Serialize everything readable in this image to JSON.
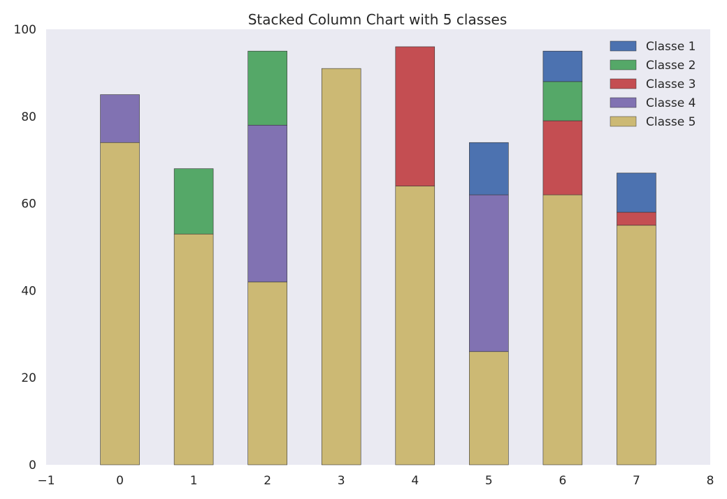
{
  "chart_data": {
    "type": "bar",
    "stacked": true,
    "title": "Stacked Column Chart with 5 classes",
    "xlabel": "",
    "ylabel": "",
    "categories": [
      0,
      1,
      2,
      3,
      4,
      5,
      6,
      7
    ],
    "xlim": [
      -1,
      8
    ],
    "ylim": [
      0,
      100
    ],
    "x_ticks": [
      "−1",
      "0",
      "1",
      "2",
      "3",
      "4",
      "5",
      "6",
      "7",
      "8"
    ],
    "y_ticks": [
      "0",
      "20",
      "40",
      "60",
      "80",
      "100"
    ],
    "grid": false,
    "legend_position": "top-right",
    "background": "#EAEAF2",
    "stack_order": [
      "Classe 5",
      "Classe 4",
      "Classe 3",
      "Classe 2",
      "Classe 1"
    ],
    "series": [
      {
        "name": "Classe 1",
        "color": "#4C72B0",
        "values": [
          0,
          0,
          0,
          0,
          0,
          12,
          7,
          9
        ]
      },
      {
        "name": "Classe 2",
        "color": "#55A868",
        "values": [
          0,
          15,
          17,
          0,
          0,
          0,
          9,
          0
        ]
      },
      {
        "name": "Classe 3",
        "color": "#C44E52",
        "values": [
          0,
          0,
          0,
          0,
          32,
          0,
          17,
          3
        ]
      },
      {
        "name": "Classe 4",
        "color": "#8172B2",
        "values": [
          11,
          0,
          36,
          0,
          0,
          36,
          0,
          0
        ]
      },
      {
        "name": "Classe 5",
        "color": "#CCB974",
        "values": [
          74,
          53,
          42,
          91,
          64,
          26,
          62,
          55
        ]
      }
    ]
  }
}
